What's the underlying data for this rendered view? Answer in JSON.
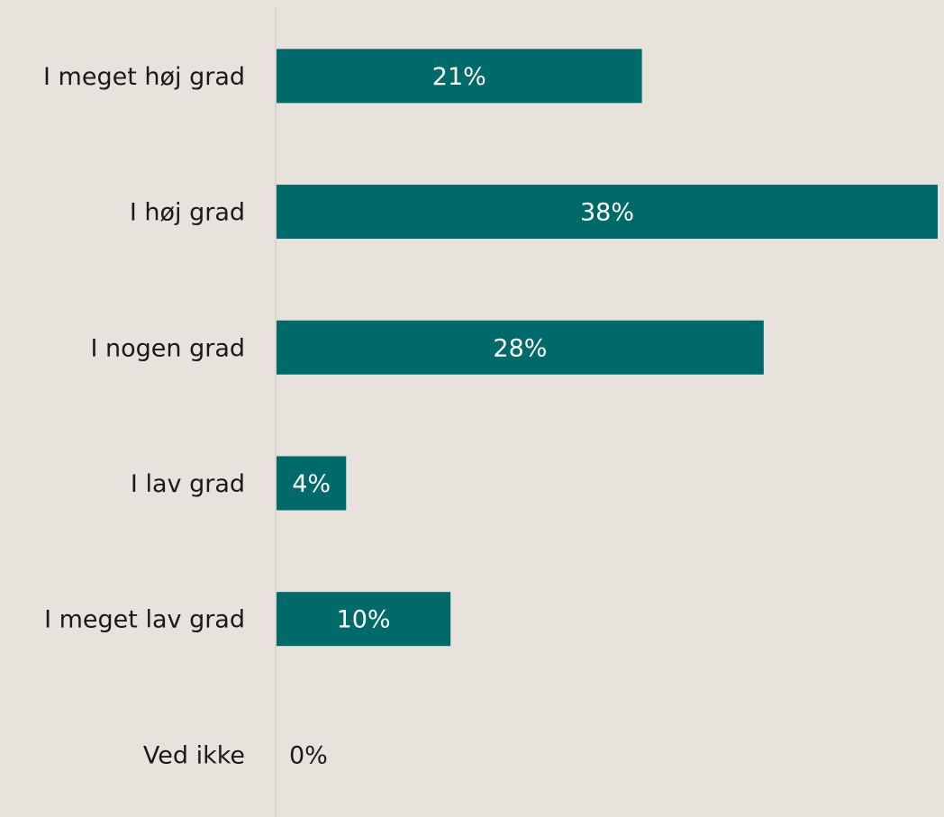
{
  "chart_data": {
    "type": "bar",
    "orientation": "horizontal",
    "categories": [
      "I meget høj grad",
      "I høj grad",
      "I nogen grad",
      "I lav grad",
      "I meget lav grad",
      "Ved ikke"
    ],
    "values": [
      21,
      38,
      28,
      4,
      10,
      0
    ],
    "value_labels": [
      "21%",
      "38%",
      "28%",
      "4%",
      "10%",
      "0%"
    ],
    "color": "#006a6b"
  }
}
